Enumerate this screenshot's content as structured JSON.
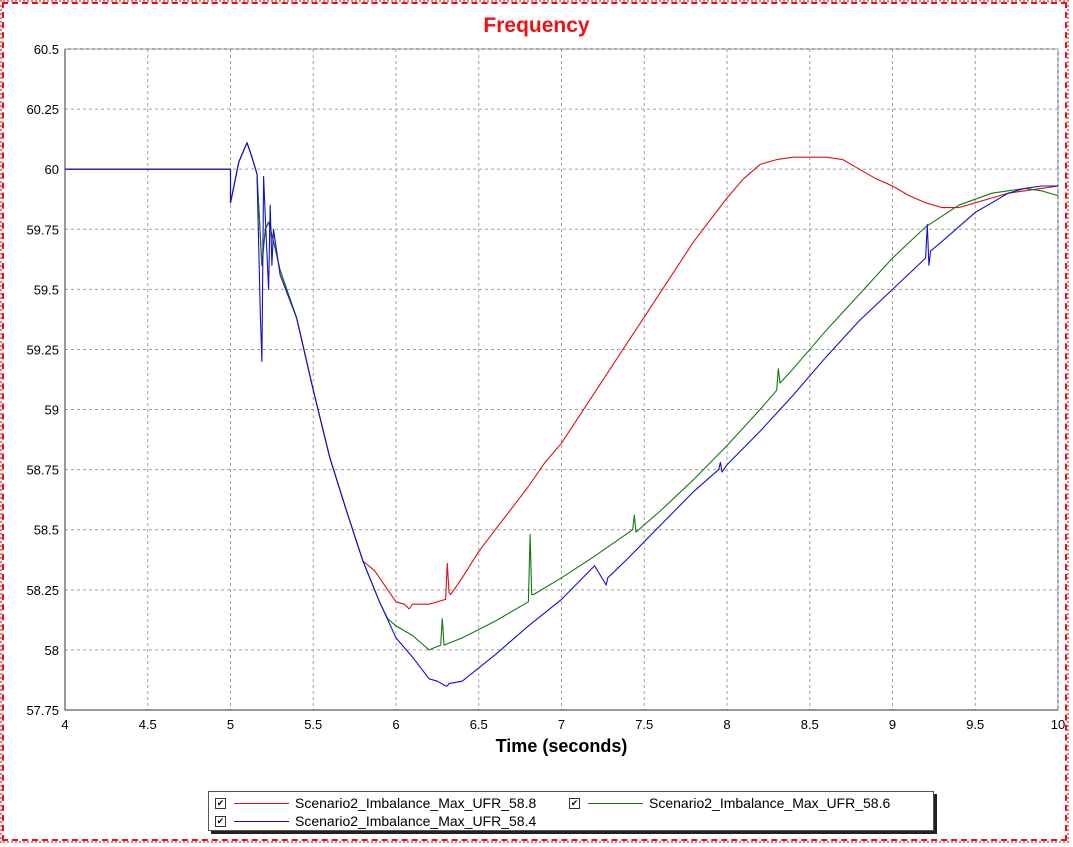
{
  "window": {
    "title": "Frequency"
  },
  "chart_data": {
    "type": "line",
    "title": "Frequency",
    "xlabel": "Time (seconds)",
    "ylabel": "",
    "xlim": [
      4,
      10
    ],
    "ylim": [
      57.75,
      60.5
    ],
    "xticks": [
      "4",
      "4.5",
      "5",
      "5.5",
      "6",
      "6.5",
      "7",
      "7.5",
      "8",
      "8.5",
      "9",
      "9.5",
      "10"
    ],
    "yticks": [
      "60.5",
      "60.25",
      "60",
      "59.75",
      "59.5",
      "59.25",
      "59",
      "58.75",
      "58.5",
      "58.25",
      "58",
      "57.75"
    ],
    "grid": true,
    "legend_position": "bottom",
    "series": [
      {
        "name": "Scenario2_Imbalance_Max_UFR_58.8",
        "color": "#dd1111",
        "x": [
          4.0,
          5.0,
          5.0,
          5.05,
          5.1,
          5.13,
          5.16,
          5.19,
          5.21,
          5.23,
          5.26,
          5.3,
          5.4,
          5.5,
          5.6,
          5.7,
          5.8,
          5.87,
          5.9,
          6.0,
          6.05,
          6.08,
          6.1,
          6.2,
          6.3,
          6.31,
          6.32,
          6.33,
          6.4,
          6.5,
          6.6,
          6.7,
          6.8,
          6.9,
          7.0,
          7.2,
          7.4,
          7.6,
          7.8,
          8.0,
          8.1,
          8.2,
          8.3,
          8.4,
          8.5,
          8.6,
          8.7,
          8.8,
          8.9,
          9.0,
          9.1,
          9.2,
          9.3,
          9.4,
          9.5,
          9.6,
          9.7,
          9.8,
          9.9,
          10.0
        ],
        "y": [
          60.0,
          60.0,
          59.86,
          60.03,
          60.11,
          60.05,
          59.98,
          59.6,
          59.75,
          59.78,
          59.7,
          59.58,
          59.38,
          59.08,
          58.8,
          58.58,
          58.37,
          58.33,
          58.3,
          58.2,
          58.19,
          58.17,
          58.19,
          58.19,
          58.21,
          58.36,
          58.24,
          58.23,
          58.3,
          58.41,
          58.5,
          58.59,
          58.68,
          58.78,
          58.86,
          59.07,
          59.28,
          59.49,
          59.7,
          59.88,
          59.96,
          60.02,
          60.04,
          60.05,
          60.05,
          60.05,
          60.04,
          60.0,
          59.96,
          59.93,
          59.89,
          59.86,
          59.84,
          59.84,
          59.86,
          59.88,
          59.9,
          59.91,
          59.92,
          59.93
        ]
      },
      {
        "name": "Scenario2_Imbalance_Max_UFR_58.6",
        "color": "#117711",
        "x": [
          4.0,
          5.0,
          5.0,
          5.05,
          5.1,
          5.13,
          5.16,
          5.19,
          5.21,
          5.23,
          5.26,
          5.3,
          5.4,
          5.5,
          5.6,
          5.7,
          5.8,
          5.9,
          5.95,
          6.0,
          6.1,
          6.2,
          6.27,
          6.28,
          6.29,
          6.4,
          6.6,
          6.8,
          6.81,
          6.82,
          6.83,
          7.0,
          7.2,
          7.43,
          7.44,
          7.45,
          7.6,
          7.8,
          8.0,
          8.2,
          8.3,
          8.31,
          8.32,
          8.4,
          8.6,
          8.8,
          9.0,
          9.2,
          9.4,
          9.6,
          9.7,
          9.8,
          9.9,
          10.0
        ],
        "y": [
          60.0,
          60.0,
          59.86,
          60.03,
          60.11,
          60.05,
          59.98,
          59.6,
          59.75,
          59.78,
          59.7,
          59.58,
          59.38,
          59.08,
          58.8,
          58.58,
          58.37,
          58.2,
          58.13,
          58.1,
          58.06,
          58.0,
          58.02,
          58.13,
          58.02,
          58.05,
          58.12,
          58.2,
          58.48,
          58.23,
          58.23,
          58.3,
          58.39,
          58.5,
          58.56,
          58.49,
          58.58,
          58.71,
          58.85,
          59.0,
          59.08,
          59.17,
          59.11,
          59.17,
          59.33,
          59.48,
          59.63,
          59.76,
          59.85,
          59.9,
          59.91,
          59.92,
          59.91,
          59.89
        ]
      },
      {
        "name": "Scenario2_Imbalance_Max_UFR_58.4",
        "color": "#1111cc",
        "x": [
          4.0,
          5.0,
          5.0,
          5.05,
          5.1,
          5.13,
          5.16,
          5.18,
          5.19,
          5.2,
          5.21,
          5.23,
          5.24,
          5.25,
          5.26,
          5.3,
          5.4,
          5.5,
          5.6,
          5.7,
          5.8,
          5.9,
          6.0,
          6.1,
          6.2,
          6.25,
          6.3,
          6.31,
          6.32,
          6.4,
          6.6,
          6.8,
          7.0,
          7.2,
          7.27,
          7.28,
          7.4,
          7.6,
          7.8,
          7.95,
          7.96,
          7.97,
          8.0,
          8.2,
          8.4,
          8.6,
          8.8,
          9.0,
          9.2,
          9.21,
          9.22,
          9.23,
          9.3,
          9.5,
          9.7,
          9.8,
          9.9,
          10.0
        ],
        "y": [
          60.0,
          60.0,
          59.86,
          60.03,
          60.11,
          60.05,
          59.98,
          59.4,
          59.2,
          59.97,
          59.8,
          59.5,
          59.85,
          59.6,
          59.75,
          59.56,
          59.38,
          59.08,
          58.8,
          58.58,
          58.37,
          58.2,
          58.05,
          57.97,
          57.88,
          57.87,
          57.85,
          57.85,
          57.86,
          57.87,
          57.98,
          58.1,
          58.21,
          58.35,
          58.27,
          58.3,
          58.38,
          58.52,
          58.66,
          58.75,
          58.78,
          58.74,
          58.77,
          58.91,
          59.06,
          59.22,
          59.37,
          59.5,
          59.63,
          59.77,
          59.6,
          59.66,
          59.7,
          59.82,
          59.9,
          59.92,
          59.93,
          59.93
        ]
      }
    ]
  },
  "legend": {
    "items": [
      {
        "label": "Scenario2_Imbalance_Max_UFR_58.8",
        "checked": true,
        "check_mark": "✔"
      },
      {
        "label": "Scenario2_Imbalance_Max_UFR_58.6",
        "checked": true,
        "check_mark": "✔"
      },
      {
        "label": "Scenario2_Imbalance_Max_UFR_58.4",
        "checked": true,
        "check_mark": "✔"
      }
    ]
  }
}
